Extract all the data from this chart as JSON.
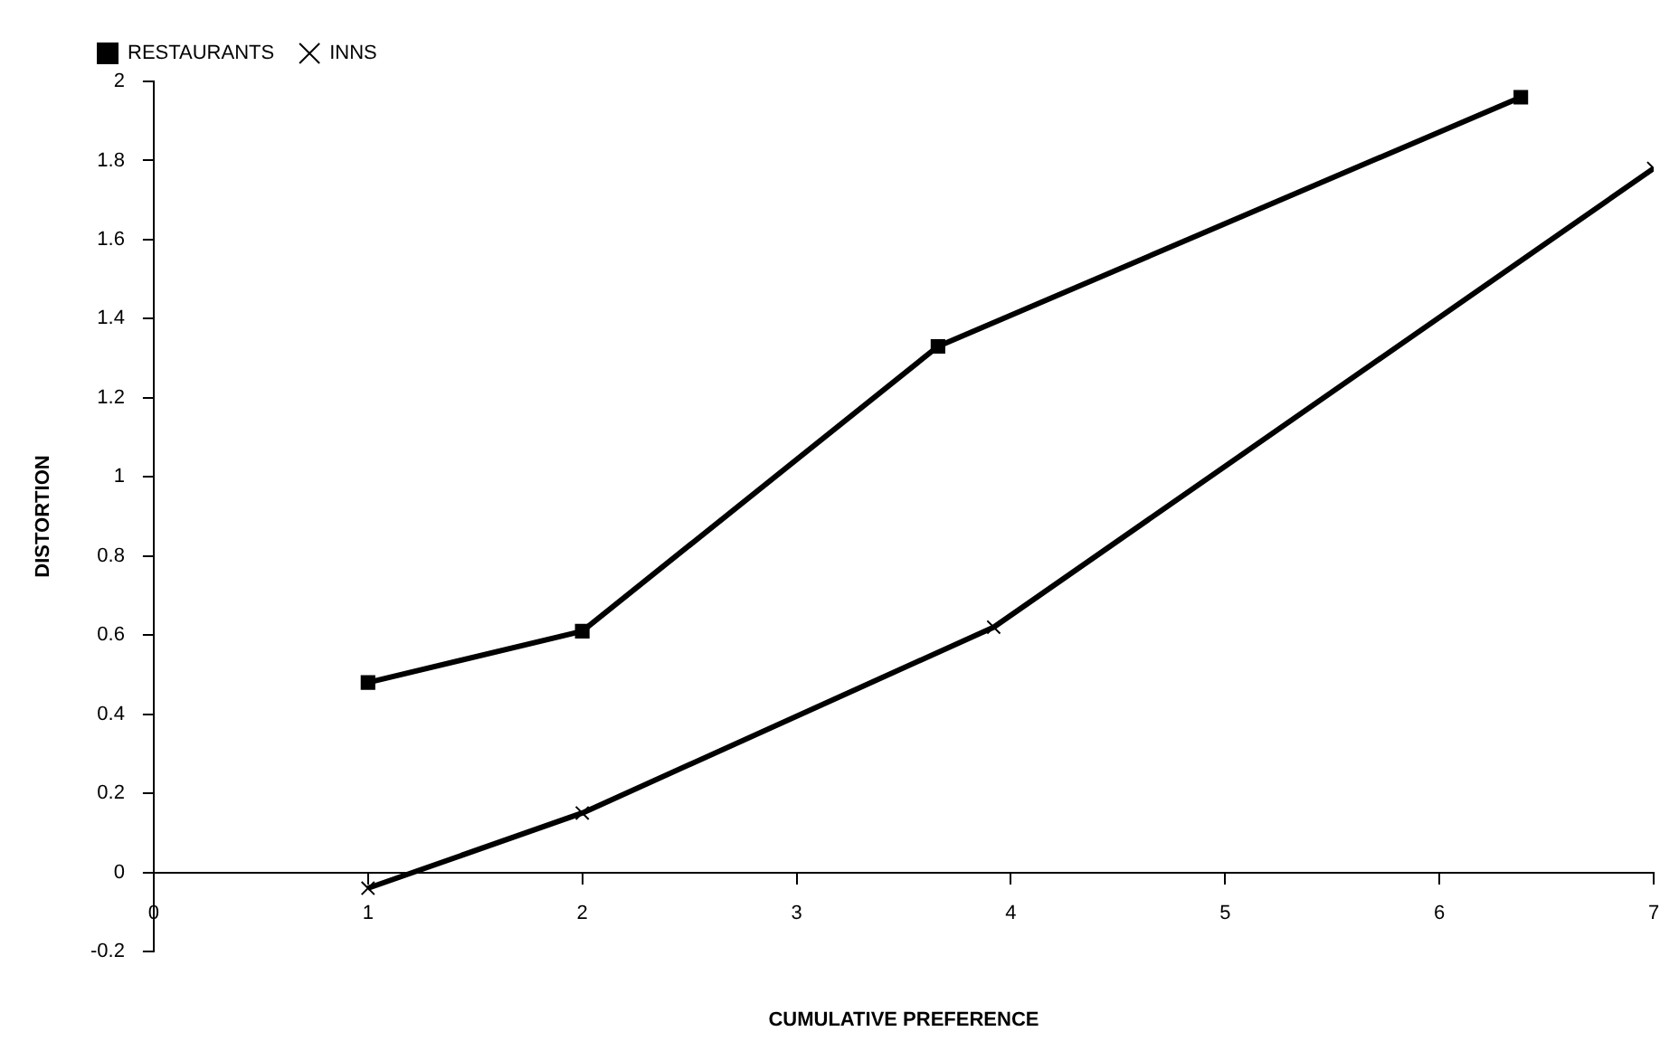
{
  "chart_data": {
    "type": "line",
    "xlabel": "CUMULATIVE PREFERENCE",
    "ylabel": "DISTORTION",
    "xlim": [
      0,
      7
    ],
    "xticks": [
      0,
      1,
      2,
      3,
      4,
      5,
      6,
      7
    ],
    "ylim": [
      -0.2,
      2
    ],
    "yticks": [
      -0.2,
      0,
      0.2,
      0.4,
      0.6,
      0.8,
      1,
      1.2,
      1.4,
      1.6,
      1.8,
      2
    ],
    "grid": false,
    "legend": "top left",
    "line_style": "solid",
    "series": [
      {
        "name": "RESTAURANTS",
        "color": "#000000",
        "marker": "square",
        "x": [
          1,
          2,
          3.66,
          6.38
        ],
        "values": [
          0.48,
          0.61,
          1.33,
          1.96
        ]
      },
      {
        "name": "INNS",
        "color": "#000000",
        "marker": "cross",
        "x": [
          1,
          2,
          3.92,
          7
        ],
        "values": [
          -0.04,
          0.15,
          0.62,
          1.78
        ]
      }
    ]
  }
}
